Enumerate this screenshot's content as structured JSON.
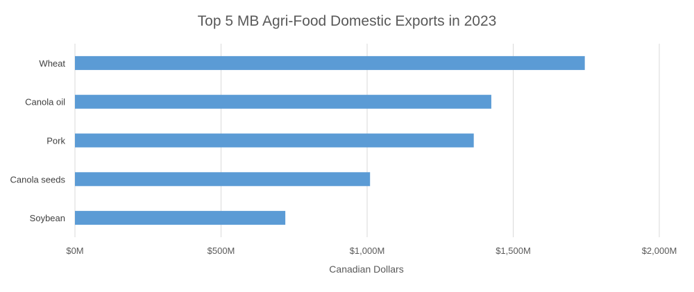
{
  "chart_data": {
    "type": "bar",
    "orientation": "horizontal",
    "title": "Top 5 MB Agri-Food Domestic Exports in 2023",
    "xlabel": "Canadian Dollars",
    "ylabel": "",
    "categories": [
      "Wheat",
      "Canola oil",
      "Pork",
      "Canola seeds",
      "Soybean"
    ],
    "values": [
      1745,
      1425,
      1365,
      1010,
      720
    ],
    "value_unit": "millions CAD",
    "xlim": [
      0,
      2000
    ],
    "x_ticks": [
      0,
      500,
      1000,
      1500,
      2000
    ],
    "x_tick_labels": [
      "$0M",
      "$500M",
      "$1,000M",
      "$1,500M",
      "$2,000M"
    ],
    "grid": "vertical",
    "legend": "none",
    "bar_color": "#5b9bd5"
  }
}
